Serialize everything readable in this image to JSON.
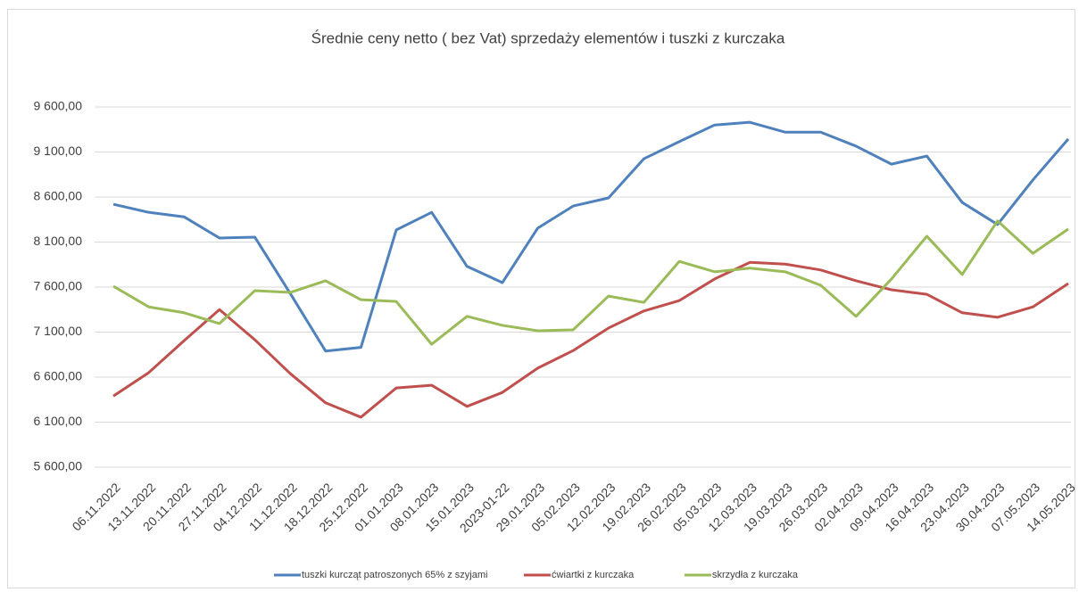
{
  "chart_data": {
    "type": "line",
    "title": "Średnie ceny netto ( bez Vat) sprzedaży elementów i tuszki z kurczaka",
    "categories": [
      "06.11.2022",
      "13.11.2022",
      "20.11.2022",
      "27.11.2022",
      "04.12.2022",
      "11.12.2022",
      "18.12.2022",
      "25.12.2022",
      "01.01.2023",
      "08.01.2023",
      "15.01.2023",
      "2023-01-22",
      "29.01.2023",
      "05.02.2023",
      "12.02.2023",
      "19.02.2023",
      "26.02.2023",
      "05.03.2023",
      "12.03.2023",
      "19.03.2023",
      "26.03.2023",
      "02.04.2023",
      "09.04.2023",
      "16.04.2023",
      "23.04.2023",
      "30.04.2023",
      "07.05.2023",
      "14.05.2023"
    ],
    "series": [
      {
        "name": "tuszki kurcząt patroszonych 65% z szyjami",
        "color": "#4f81bd",
        "values": [
          8520,
          8430,
          8380,
          8145,
          8155,
          7530,
          6890,
          6930,
          8235,
          8430,
          7830,
          7650,
          8255,
          8500,
          8590,
          9025,
          9215,
          9400,
          9430,
          9320,
          9320,
          9165,
          8965,
          9055,
          8540,
          8295,
          8790,
          9245
        ]
      },
      {
        "name": "ćwiartki z kurczaka",
        "color": "#c0504d",
        "values": [
          6390,
          6650,
          7005,
          7350,
          7015,
          6640,
          6315,
          6155,
          6480,
          6510,
          6275,
          6430,
          6700,
          6895,
          7145,
          7335,
          7450,
          7690,
          7875,
          7855,
          7790,
          7670,
          7570,
          7520,
          7315,
          7265,
          7380,
          7640
        ]
      },
      {
        "name": "skrzydła z kurczaka",
        "color": "#9bbb59",
        "values": [
          7610,
          7380,
          7315,
          7195,
          7560,
          7540,
          7670,
          7460,
          7440,
          6965,
          7275,
          7175,
          7115,
          7125,
          7500,
          7430,
          7885,
          7770,
          7810,
          7770,
          7620,
          7275,
          7690,
          8165,
          7740,
          8335,
          7975,
          8245
        ]
      }
    ],
    "ylim": [
      5600,
      9600
    ],
    "yticks": [
      {
        "value": 5600,
        "label": "5 600,00"
      },
      {
        "value": 6100,
        "label": "6 100,00"
      },
      {
        "value": 6600,
        "label": "6 600,00"
      },
      {
        "value": 7100,
        "label": "7 100,00"
      },
      {
        "value": 7600,
        "label": "7 600,00"
      },
      {
        "value": 8100,
        "label": "8 100,00"
      },
      {
        "value": 8600,
        "label": "8 600,00"
      },
      {
        "value": 9100,
        "label": "9 100,00"
      },
      {
        "value": 9600,
        "label": "9 600,00"
      }
    ],
    "grid": true,
    "legend": "bottom"
  }
}
